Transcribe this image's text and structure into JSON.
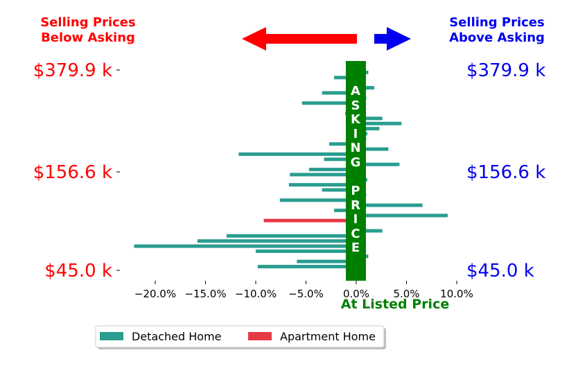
{
  "header": {
    "left_label_line1": "Selling Prices",
    "left_label_line2": "Below Asking",
    "right_label_line1": "Selling Prices",
    "right_label_line2": "Above Asking"
  },
  "colors": {
    "below": "#ff0000",
    "above": "#0000ee",
    "asking_band": "#008000",
    "detached": "#2a9d8f",
    "apartment": "#e63946"
  },
  "price_labels": {
    "left": [
      "$379.9 k",
      "$156.6 k",
      "$45.0 k"
    ],
    "right": [
      "$379.9 k",
      "$156.6 k",
      "$45.0 k"
    ]
  },
  "asking_band_letters": [
    "A",
    "S",
    "K",
    "I",
    "N",
    "G",
    "",
    "P",
    "R",
    "I",
    "C",
    "E"
  ],
  "x_axis_label": "At Listed Price",
  "chart_data": {
    "type": "bar",
    "orientation": "horizontal",
    "xlabel": "At Listed Price",
    "xlim": [
      -22.5,
      11.5
    ],
    "x_ticks": [
      -20,
      -15,
      -10,
      -5,
      0,
      5,
      10
    ],
    "x_tick_labels": [
      "−20.0%",
      "−15.0%",
      "−10.0%",
      "−5.0%",
      "0.0%",
      "5.0%",
      "10.0%"
    ],
    "y_tick_labels": [
      "$379.9 k",
      "$156.6 k",
      "$45.0 k"
    ],
    "legend": {
      "placement": "bottom-center",
      "entries": [
        "Detached Home",
        "Apartment Home"
      ]
    },
    "series": [
      {
        "name": "Detached Home",
        "values": [
          1.2,
          -2.2,
          0.8,
          1.8,
          -3.4,
          1.0,
          -5.4,
          0.9,
          -1.1,
          2.6,
          4.5,
          2.3,
          1.1,
          1.0,
          -2.7,
          3.2,
          -11.7,
          -3.2,
          4.3,
          -4.7,
          -6.6,
          1.1,
          -6.7,
          -3.4,
          1.0,
          -7.6,
          6.6,
          -2.2,
          9.1,
          0.0,
          0.8,
          2.6,
          -12.9,
          -15.8,
          -22.1,
          -10.0,
          1.2,
          -5.9,
          -9.8
        ]
      },
      {
        "name": "Apartment Home",
        "values": [
          null,
          null,
          null,
          null,
          null,
          null,
          null,
          null,
          null,
          null,
          null,
          null,
          null,
          null,
          null,
          null,
          null,
          null,
          null,
          null,
          null,
          null,
          null,
          null,
          null,
          null,
          null,
          null,
          null,
          -9.2,
          null,
          null,
          null,
          null,
          null,
          null,
          null,
          null,
          null
        ]
      }
    ]
  },
  "legend": {
    "detached": "Detached Home",
    "apartment": "Apartment Home"
  }
}
